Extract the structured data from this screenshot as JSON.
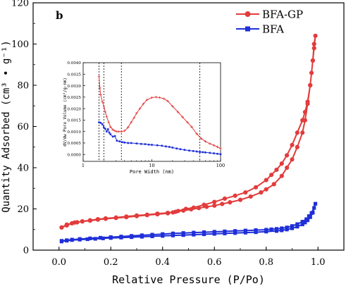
{
  "chart_data": [
    {
      "type": "line",
      "panel_label": "b",
      "xlabel": "Relative Pressure (P/Po)",
      "ylabel": "Quantity Adsorbed (cm³ • g⁻¹)",
      "xlim": [
        -0.1,
        1.1
      ],
      "ylim": [
        0,
        120
      ],
      "x_ticks": [
        "0.0",
        "0.2",
        "0.4",
        "0.6",
        "0.8",
        "1.0"
      ],
      "y_ticks": [
        "0",
        "20",
        "40",
        "60",
        "80",
        "100",
        "120"
      ],
      "legend_position": "top-right",
      "series": [
        {
          "name": "BFA-GP",
          "color": "#e23c3c",
          "marker": "circle",
          "x": [
            0.01,
            0.03,
            0.05,
            0.07,
            0.09,
            0.12,
            0.15,
            0.18,
            0.22,
            0.26,
            0.3,
            0.34,
            0.38,
            0.42,
            0.45,
            0.48,
            0.51,
            0.54,
            0.57,
            0.6,
            0.63,
            0.66,
            0.7,
            0.74,
            0.78,
            0.8,
            0.83,
            0.86,
            0.88,
            0.9,
            0.92,
            0.94,
            0.95,
            0.96,
            0.97,
            0.98,
            0.985,
            0.99,
            0.985,
            0.98,
            0.975,
            0.97,
            0.96,
            0.95,
            0.94,
            0.92,
            0.9,
            0.88,
            0.86,
            0.84,
            0.82,
            0.8,
            0.76,
            0.72,
            0.68,
            0.64,
            0.6,
            0.56,
            0.52,
            0.49,
            0.46,
            0.44,
            0.42,
            0.38,
            0.34,
            0.3,
            0.26,
            0.22,
            0.18,
            0.15,
            0.12,
            0.09,
            0.06,
            0.03,
            0.01
          ],
          "y": [
            11,
            12,
            13,
            13.5,
            14,
            14.5,
            15,
            15.4,
            15.8,
            16.3,
            16.8,
            17.2,
            17.7,
            18.1,
            18.6,
            19.2,
            19.8,
            20.4,
            21,
            21.6,
            22.4,
            23.2,
            24.4,
            26,
            28,
            29.5,
            32,
            36,
            40,
            44,
            50,
            57,
            63,
            71,
            80,
            92,
            100,
            104,
            98,
            92,
            86,
            80,
            72,
            67,
            63,
            57,
            51,
            46,
            42,
            39,
            36.5,
            34,
            30.5,
            28,
            26.4,
            25,
            23.4,
            22,
            20.6,
            20,
            19,
            18.3,
            17.9,
            17.4,
            17,
            16.5,
            16,
            15.6,
            15.2,
            14.8,
            14.3,
            13.9,
            13.4,
            12.4,
            11
          ]
        },
        {
          "name": "BFA",
          "color": "#1f2fd8",
          "marker": "square",
          "x": [
            0.01,
            0.03,
            0.05,
            0.08,
            0.11,
            0.14,
            0.17,
            0.2,
            0.24,
            0.28,
            0.32,
            0.36,
            0.4,
            0.44,
            0.48,
            0.52,
            0.56,
            0.6,
            0.64,
            0.68,
            0.72,
            0.76,
            0.8,
            0.84,
            0.86,
            0.88,
            0.9,
            0.92,
            0.94,
            0.95,
            0.96,
            0.97,
            0.98,
            0.99,
            0.985,
            0.975,
            0.965,
            0.955,
            0.94,
            0.92,
            0.9,
            0.88,
            0.86,
            0.84,
            0.82,
            0.8,
            0.76,
            0.72,
            0.68,
            0.64,
            0.6,
            0.56,
            0.52,
            0.48,
            0.44,
            0.4,
            0.36,
            0.32,
            0.28,
            0.24,
            0.2,
            0.16,
            0.12,
            0.08,
            0.05,
            0.03,
            0.01
          ],
          "y": [
            4.2,
            4.6,
            4.9,
            5.1,
            5.3,
            5.5,
            5.7,
            5.9,
            6.1,
            6.3,
            6.5,
            6.7,
            6.9,
            7.1,
            7.3,
            7.5,
            7.7,
            7.9,
            8.1,
            8.3,
            8.5,
            8.7,
            9,
            9.3,
            9.6,
            10,
            10.6,
            11.4,
            12.5,
            13.4,
            14.5,
            16,
            18.2,
            22.5,
            20.5,
            18,
            16.5,
            15,
            13.8,
            12.6,
            11.7,
            11,
            10.6,
            10.3,
            10.1,
            9.9,
            9.7,
            9.5,
            9.3,
            9.1,
            8.9,
            8.7,
            8.5,
            8.3,
            8.1,
            7.8,
            7.5,
            7.2,
            6.9,
            6.6,
            6.3,
            6,
            5.7,
            5.4,
            5.1,
            4.8,
            4.5
          ]
        }
      ]
    },
    {
      "type": "line",
      "inset": true,
      "xlabel": "Pore Width (nm)",
      "ylabel": "dV/dw Pore Volume (cm³/g·nm)",
      "x_scale": "log",
      "xlim": [
        1,
        100
      ],
      "ylim": [
        -0.0003,
        0.004
      ],
      "x_ticks": [
        "1",
        "10",
        "100"
      ],
      "y_ticks": [
        "0.0000",
        "0.0005",
        "0.0010",
        "0.0015",
        "0.0020",
        "0.0025",
        "0.0030",
        "0.0035",
        "0.0040"
      ],
      "vertical_lines": [
        1.7,
        2.0,
        3.6,
        50
      ],
      "series": [
        {
          "name": "",
          "color": "#e23c3c",
          "marker": "plus",
          "x": [
            1.7,
            1.75,
            1.8,
            1.9,
            2,
            2.1,
            2.2,
            2.35,
            2.5,
            2.7,
            2.9,
            3.1,
            3.3,
            3.6,
            4,
            4.5,
            5,
            5.5,
            6,
            6.7,
            7.5,
            8.5,
            10,
            11.5,
            13,
            15,
            17,
            20,
            24,
            28,
            33,
            38,
            45,
            52,
            60,
            70,
            80,
            90,
            100
          ],
          "y": [
            0.0034,
            0.0029,
            0.0026,
            0.0023,
            0.0021,
            0.00185,
            0.00165,
            0.0014,
            0.0012,
            0.00108,
            0.00103,
            0.001,
            0.001,
            0.001,
            0.00103,
            0.00118,
            0.0014,
            0.0016,
            0.0018,
            0.002,
            0.0022,
            0.00238,
            0.00248,
            0.0025,
            0.00248,
            0.00243,
            0.00233,
            0.0021,
            0.00185,
            0.00163,
            0.0014,
            0.0012,
            0.0009,
            0.0007,
            0.00057,
            0.00047,
            0.0004,
            0.00033,
            0.00026
          ]
        },
        {
          "name": "",
          "color": "#1f2fd8",
          "marker": "square",
          "x": [
            1.7,
            1.8,
            1.9,
            2,
            2.1,
            2.2,
            2.3,
            2.4,
            2.5,
            2.7,
            2.9,
            3.1,
            3.4,
            3.7,
            4,
            4.5,
            5,
            6,
            7,
            8,
            9,
            10,
            12,
            14,
            16,
            18,
            20,
            23,
            26,
            30,
            35,
            40,
            45,
            50,
            55,
            60,
            70,
            80,
            90,
            100
          ],
          "y": [
            0.0014,
            0.00138,
            0.00132,
            0.00118,
            0.00112,
            0.001,
            0.0011,
            0.00095,
            0.00088,
            0.00078,
            0.0008,
            0.0006,
            0.00057,
            0.00054,
            0.00052,
            0.0005,
            0.0005,
            0.00048,
            0.00046,
            0.00045,
            0.00043,
            0.00042,
            0.0004,
            0.00038,
            0.00035,
            0.00033,
            0.0003,
            0.00026,
            0.00023,
            0.0002,
            0.00017,
            0.00015,
            0.00013,
            0.00011,
            0.0001,
            9e-05,
            7e-05,
            5e-05,
            3e-05,
            1e-05
          ]
        }
      ]
    }
  ]
}
